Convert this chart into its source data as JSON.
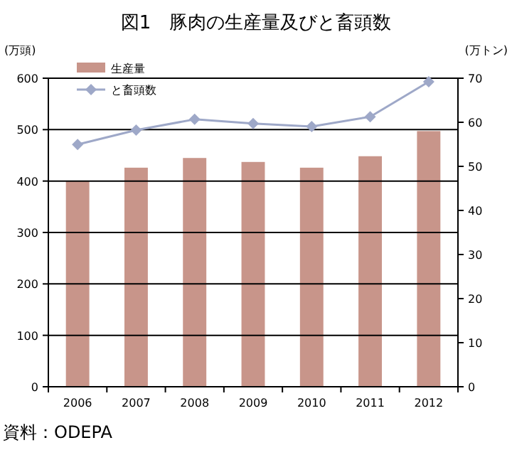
{
  "chart_data": {
    "type": "bar",
    "title": "図1　豚肉の生産量及びと畜頭数",
    "ylabel": "(万頭)",
    "y2label": "(万トン)",
    "categories": [
      "2006",
      "2007",
      "2008",
      "2009",
      "2010",
      "2011",
      "2012"
    ],
    "series": [
      {
        "name": "生産量",
        "axis": "y2",
        "color": "#c8958a",
        "values": [
          46.7,
          49.7,
          51.9,
          51.0,
          49.7,
          52.3,
          58.0
        ]
      },
      {
        "name": "と畜頭数",
        "type": "line",
        "axis": "y",
        "color": "#9ea8c8",
        "marker": "diamond",
        "values": [
          471,
          499,
          520,
          512,
          506,
          525,
          593
        ]
      }
    ],
    "ylim": [
      0,
      600
    ],
    "yticks": [
      0,
      100,
      200,
      300,
      400,
      500,
      600
    ],
    "y2lim": [
      0,
      70
    ],
    "y2ticks": [
      0,
      10,
      20,
      30,
      40,
      50,
      60,
      70
    ],
    "grid": "y",
    "legend": "top left",
    "annotations": [
      "資料：ODEPA"
    ]
  }
}
